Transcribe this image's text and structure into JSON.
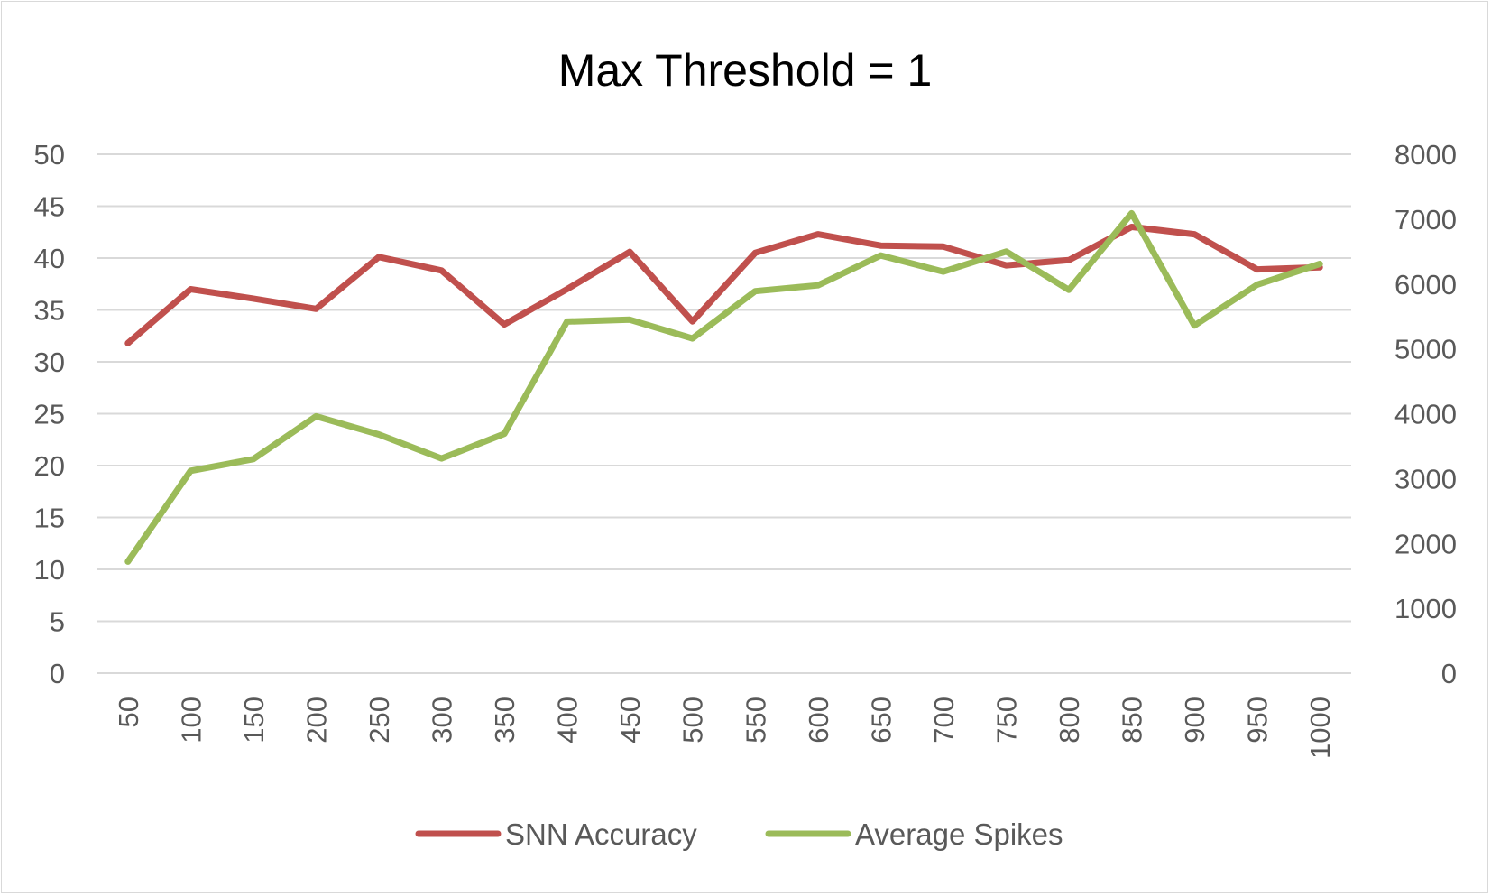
{
  "chart_data": {
    "type": "line",
    "title": "Max Threshold = 1",
    "xlabel": "",
    "ylabel": "",
    "x": [
      50,
      100,
      150,
      200,
      250,
      300,
      350,
      400,
      450,
      500,
      550,
      600,
      650,
      700,
      750,
      800,
      850,
      900,
      950,
      1000
    ],
    "y_left_ticks": [
      "0",
      "5",
      "10",
      "15",
      "20",
      "25",
      "30",
      "35",
      "40",
      "45",
      "50"
    ],
    "y_right_ticks": [
      "0",
      "1000",
      "2000",
      "3000",
      "4000",
      "5000",
      "6000",
      "7000",
      "8000"
    ],
    "ylim_left": [
      0,
      50
    ],
    "ylim_right": [
      0,
      8000
    ],
    "grid": true,
    "legend_position": "bottom",
    "series": [
      {
        "name": "SNN Accuracy",
        "axis": "left",
        "color": "#c0504d",
        "values": [
          31.8,
          37.0,
          36.1,
          35.1,
          40.1,
          38.8,
          33.6,
          37.0,
          40.6,
          33.9,
          40.5,
          42.3,
          41.2,
          41.1,
          39.3,
          39.8,
          43.0,
          42.3,
          38.9,
          39.1
        ]
      },
      {
        "name": "Average Spikes",
        "axis": "right",
        "color": "#9bbb59",
        "values": [
          1720,
          3120,
          3300,
          3960,
          3680,
          3310,
          3690,
          5420,
          5450,
          5160,
          5890,
          5980,
          6440,
          6190,
          6500,
          5910,
          7090,
          5360,
          5990,
          6310
        ]
      }
    ]
  }
}
